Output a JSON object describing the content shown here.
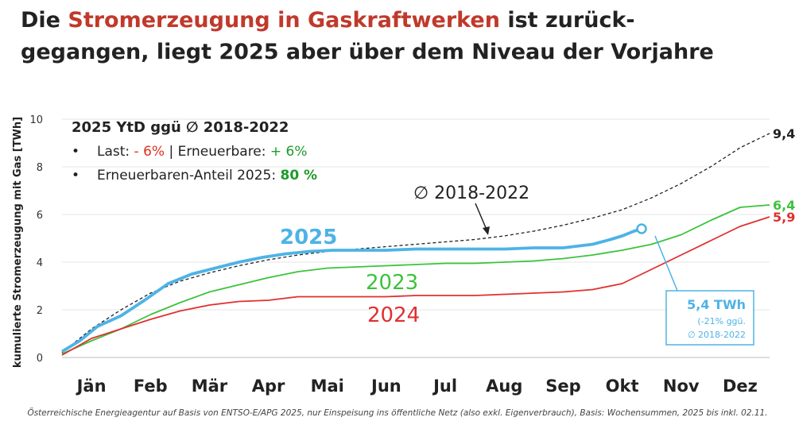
{
  "title": {
    "part1": "Die ",
    "highlight": "Stromerzeugung in Gaskraftwerken",
    "part2": " ist zurück-",
    "line2": "gegangen, liegt 2025 aber über dem Niveau der Vorjahre"
  },
  "colors": {
    "highlight": "#c0392b",
    "s2025": "#4db3e6",
    "s2023": "#3cc33c",
    "s2024": "#e03030",
    "avg": "#222222",
    "green_text": "#1e9a2a",
    "red_text": "#e0301e"
  },
  "infobox": {
    "heading": "2025 YtD ggü ∅ 2018-2022",
    "bullet1_prefix": "Last: ",
    "bullet1_last": "- 6%",
    "bullet1_sep": " | Erneuerbare: ",
    "bullet1_ren": "+ 6%",
    "bullet2_prefix": "Erneuerbaren-Anteil 2025: ",
    "bullet2_value": "80 %"
  },
  "callout": {
    "value": "5,4 TWh",
    "detail1": "(-21% ggü.",
    "detail2": "∅ 2018-2022"
  },
  "footnote": "Österreichische Energieagentur auf Basis von ENTSO-E/APG 2025, nur Einspeisung ins öffentliche Netz (also exkl. Eigenverbrauch), Basis: Wochensummen, 2025 bis inkl. 02.11.",
  "chart_data": {
    "type": "line",
    "title": "Die Stromerzeugung in Gaskraftwerken ist zurückgegangen, liegt 2025 aber über dem Niveau der Vorjahre",
    "xlabel": "",
    "ylabel": "kumulierte Stromerzeugung mit Gas [TWh]",
    "ylim": [
      0,
      10
    ],
    "yticks": [
      "0",
      "2",
      "4",
      "6",
      "8",
      "10"
    ],
    "xlim": [
      0,
      12
    ],
    "categories": [
      "Jän",
      "Feb",
      "Mär",
      "Apr",
      "Mai",
      "Jun",
      "Jul",
      "Aug",
      "Sep",
      "Okt",
      "Nov",
      "Dez"
    ],
    "series": [
      {
        "name": "∅ 2018-2022",
        "key": "avg",
        "style": "dashed",
        "end_label": "9,4",
        "x": [
          0,
          0.5,
          1,
          1.5,
          2,
          2.5,
          3,
          3.5,
          4,
          4.5,
          5,
          5.5,
          6,
          6.5,
          7,
          7.5,
          8,
          8.5,
          9,
          9.5,
          10,
          10.5,
          11,
          11.5,
          12
        ],
        "values": [
          0.2,
          1.2,
          2.0,
          2.7,
          3.2,
          3.55,
          3.85,
          4.1,
          4.3,
          4.45,
          4.55,
          4.65,
          4.75,
          4.85,
          4.95,
          5.1,
          5.3,
          5.55,
          5.85,
          6.2,
          6.7,
          7.3,
          8.0,
          8.8,
          9.4
        ]
      },
      {
        "name": "2025",
        "key": "s2025",
        "x": [
          0,
          0.3,
          0.6,
          1,
          1.4,
          1.8,
          2.2,
          2.6,
          3,
          3.4,
          3.8,
          4.2,
          4.6,
          5,
          5.5,
          6,
          6.5,
          7,
          7.5,
          8,
          8.5,
          9,
          9.3,
          9.5,
          9.7,
          9.83
        ],
        "values": [
          0.25,
          0.7,
          1.3,
          1.75,
          2.4,
          3.1,
          3.5,
          3.75,
          4.0,
          4.2,
          4.35,
          4.45,
          4.5,
          4.5,
          4.5,
          4.55,
          4.55,
          4.55,
          4.55,
          4.6,
          4.6,
          4.75,
          4.95,
          5.1,
          5.3,
          5.4
        ],
        "label": "2025"
      },
      {
        "name": "2023",
        "key": "s2023",
        "end_label": "6,4",
        "x": [
          0,
          0.5,
          1,
          1.5,
          2,
          2.5,
          3,
          3.5,
          4,
          4.5,
          5,
          5.5,
          6,
          6.5,
          7,
          7.5,
          8,
          8.5,
          9,
          9.5,
          10,
          10.5,
          11,
          11.5,
          12
        ],
        "values": [
          0.15,
          0.7,
          1.2,
          1.8,
          2.3,
          2.75,
          3.05,
          3.35,
          3.6,
          3.75,
          3.8,
          3.85,
          3.9,
          3.95,
          3.95,
          4.0,
          4.05,
          4.15,
          4.3,
          4.5,
          4.75,
          5.15,
          5.75,
          6.3,
          6.4
        ]
      },
      {
        "name": "2024",
        "key": "s2024",
        "end_label": "5,9",
        "x": [
          0,
          0.5,
          1,
          1.5,
          2,
          2.5,
          3,
          3.5,
          4,
          4.5,
          5,
          5.5,
          6,
          6.5,
          7,
          7.5,
          8,
          8.5,
          9,
          9.5,
          10,
          10.5,
          11,
          11.5,
          12
        ],
        "values": [
          0.1,
          0.8,
          1.2,
          1.6,
          1.95,
          2.2,
          2.35,
          2.4,
          2.55,
          2.55,
          2.55,
          2.55,
          2.6,
          2.6,
          2.6,
          2.65,
          2.7,
          2.75,
          2.85,
          3.1,
          3.7,
          4.3,
          4.9,
          5.5,
          5.9
        ]
      }
    ],
    "annotations": [
      {
        "text": "∅ 2018-2022",
        "target": "avg"
      },
      {
        "text": "2023",
        "target": "s2023"
      },
      {
        "text": "2024",
        "target": "s2024"
      },
      {
        "text": "5,4 TWh",
        "target": "s2025"
      }
    ]
  }
}
